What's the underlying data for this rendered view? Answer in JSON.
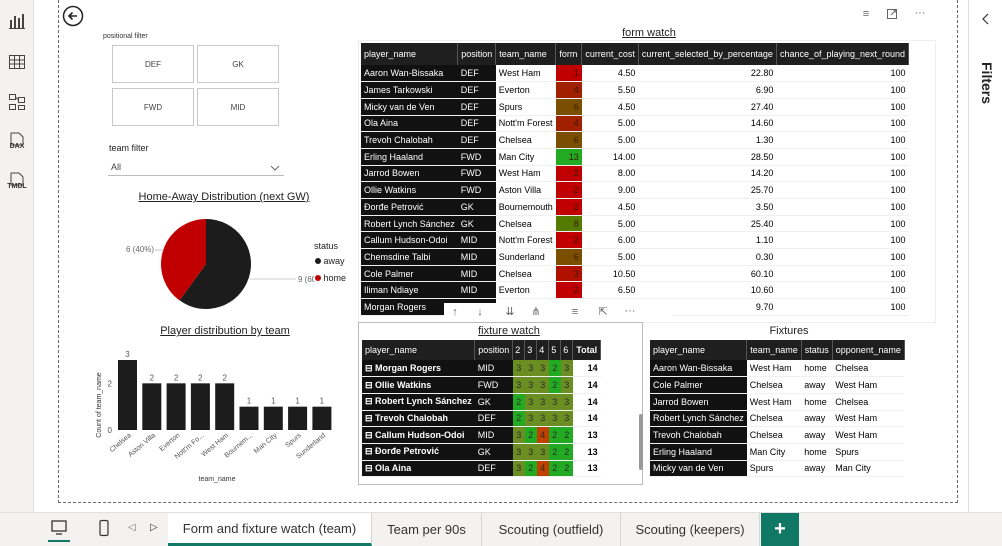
{
  "left_nav": [
    {
      "name": "report-view",
      "icon": "bar-chart-icon"
    },
    {
      "name": "table-view",
      "icon": "table-icon"
    },
    {
      "name": "model-view",
      "icon": "model-icon"
    },
    {
      "name": "dax-query",
      "icon": "dax-icon",
      "label": "DAX"
    },
    {
      "name": "tmdl-view",
      "icon": "tmdl-icon",
      "label": "TMDL"
    }
  ],
  "filters_pane": {
    "label": "Filters"
  },
  "positional_filter": {
    "title": "positional filter",
    "options": [
      "DEF",
      "GK",
      "FWD",
      "MID"
    ]
  },
  "team_filter": {
    "title": "team filter",
    "value": "All"
  },
  "pie": {
    "title": "Home-Away Distribution (next GW)",
    "legend_title": "status",
    "legend": [
      {
        "label": "away",
        "color": "#1c1c1c"
      },
      {
        "label": "home",
        "color": "#c00000"
      }
    ],
    "labels": {
      "home": "6 (40%)",
      "away": "9 (60%)"
    },
    "chart_data": {
      "type": "pie",
      "labels": [
        "away",
        "home"
      ],
      "values": [
        9,
        6
      ],
      "percents": [
        60,
        40
      ]
    }
  },
  "bar": {
    "title": "Player distribution by team",
    "xlabel": "team_name",
    "ylabel": "Count of team_name",
    "chart_data": {
      "type": "bar",
      "categories": [
        "Chelsea",
        "Aston Villa",
        "Everton",
        "Nott'm Fo...",
        "West Ham",
        "Bournem...",
        "Man City",
        "Spurs",
        "Sunderland"
      ],
      "values": [
        3,
        2,
        2,
        2,
        2,
        1,
        1,
        1,
        1
      ],
      "ylim": [
        0,
        3
      ],
      "yticks": [
        "0",
        "2"
      ]
    }
  },
  "form_watch": {
    "title": "form watch",
    "columns": [
      "player_name",
      "position",
      "team_name",
      "form",
      "current_cost",
      "current_selected_by_percentage",
      "chance_of_playing_next_round"
    ],
    "rows": [
      [
        "Aaron Wan-Bissaka",
        "DEF",
        "West Ham",
        "1",
        "4.50",
        "22.80",
        "100",
        "#c00000"
      ],
      [
        "James Tarkowski",
        "DEF",
        "Everton",
        "4",
        "5.50",
        "6.90",
        "100",
        "#a02000"
      ],
      [
        "Micky van de Ven",
        "DEF",
        "Spurs",
        "6",
        "4.50",
        "27.40",
        "100",
        "#7a5000"
      ],
      [
        "Ola Aina",
        "DEF",
        "Nott'm Forest",
        "4",
        "5.00",
        "14.60",
        "100",
        "#a02000"
      ],
      [
        "Trevoh Chalobah",
        "DEF",
        "Chelsea",
        "6",
        "5.00",
        "1.30",
        "100",
        "#7a5000"
      ],
      [
        "Erling Haaland",
        "FWD",
        "Man City",
        "13",
        "14.00",
        "28.50",
        "100",
        "#22aa22"
      ],
      [
        "Jarrod Bowen",
        "FWD",
        "West Ham",
        "2",
        "8.00",
        "14.20",
        "100",
        "#c00000"
      ],
      [
        "Ollie Watkins",
        "FWD",
        "Aston Villa",
        "2",
        "9.00",
        "25.70",
        "100",
        "#c00000"
      ],
      [
        "Đorđe Petrović",
        "GK",
        "Bournemouth",
        "2",
        "4.50",
        "3.50",
        "100",
        "#c00000"
      ],
      [
        "Robert Lynch Sánchez",
        "GK",
        "Chelsea",
        "8",
        "5.00",
        "25.40",
        "100",
        "#557a00"
      ],
      [
        "Callum Hudson-Odoi",
        "MID",
        "Nott'm Forest",
        "2",
        "6.00",
        "1.10",
        "100",
        "#c00000"
      ],
      [
        "Chemsdine Talbi",
        "MID",
        "Sunderland",
        "6",
        "5.00",
        "0.30",
        "100",
        "#7a5000"
      ],
      [
        "Cole Palmer",
        "MID",
        "Chelsea",
        "3",
        "10.50",
        "60.10",
        "100",
        "#b01000"
      ],
      [
        "Iliman Ndiaye",
        "MID",
        "Everton",
        "2",
        "6.50",
        "10.60",
        "100",
        "#c00000"
      ],
      [
        "Morgan Rogers",
        "",
        "",
        "",
        "",
        "9.70",
        "100",
        ""
      ]
    ]
  },
  "fixture_watch": {
    "title": "fixture watch",
    "columns": [
      "player_name",
      "position",
      "2",
      "3",
      "4",
      "5",
      "6",
      "Total"
    ],
    "rows": [
      {
        "name": "Morgan Rogers",
        "pos": "MID",
        "f": [
          "3",
          "3",
          "3",
          "2",
          "3"
        ],
        "total": "14"
      },
      {
        "name": "Ollie Watkins",
        "pos": "FWD",
        "f": [
          "3",
          "3",
          "3",
          "2",
          "3"
        ],
        "total": "14"
      },
      {
        "name": "Robert Lynch Sánchez",
        "pos": "GK",
        "f": [
          "2",
          "3",
          "3",
          "3",
          "3"
        ],
        "total": "14"
      },
      {
        "name": "Trevoh Chalobah",
        "pos": "DEF",
        "f": [
          "2",
          "3",
          "3",
          "3",
          "3"
        ],
        "total": "14"
      },
      {
        "name": "Callum Hudson-Odoi",
        "pos": "MID",
        "f": [
          "3",
          "2",
          "4",
          "2",
          "2"
        ],
        "total": "13"
      },
      {
        "name": "Đorđe Petrović",
        "pos": "GK",
        "f": [
          "3",
          "3",
          "3",
          "2",
          "2"
        ],
        "total": "13"
      },
      {
        "name": "Ola Aina",
        "pos": "DEF",
        "f": [
          "3",
          "2",
          "4",
          "2",
          "2"
        ],
        "total": "13"
      }
    ]
  },
  "fixtures": {
    "title": "Fixtures",
    "columns": [
      "player_name",
      "team_name",
      "status",
      "opponent_name"
    ],
    "rows": [
      [
        "Aaron Wan-Bissaka",
        "West Ham",
        "home",
        "Chelsea"
      ],
      [
        "Cole Palmer",
        "Chelsea",
        "away",
        "West Ham"
      ],
      [
        "Jarrod Bowen",
        "West Ham",
        "home",
        "Chelsea"
      ],
      [
        "Robert Lynch Sánchez",
        "Chelsea",
        "away",
        "West Ham"
      ],
      [
        "Trevoh Chalobah",
        "Chelsea",
        "away",
        "West Ham"
      ],
      [
        "Erling Haaland",
        "Man City",
        "home",
        "Spurs"
      ],
      [
        "Micky van de Ven",
        "Spurs",
        "away",
        "Man City"
      ]
    ]
  },
  "tabs": [
    "Form and fixture watch (team)",
    "Team per 90s",
    "Scouting (outfield)",
    "Scouting (keepers)"
  ],
  "add_tab": "+"
}
